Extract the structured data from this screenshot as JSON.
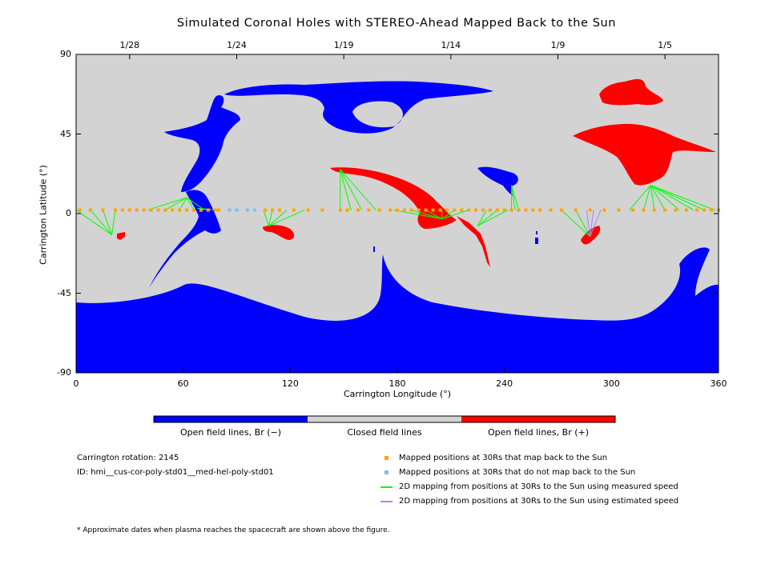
{
  "chart_data": {
    "type": "map",
    "title": "Simulated Coronal Holes with STEREO-Ahead Mapped Back to the Sun",
    "xlabel": "Carrington Longitude (°)",
    "ylabel": "Carrington Latitude (°)",
    "xlim": [
      0,
      360
    ],
    "ylim": [
      -90,
      90
    ],
    "x_ticks": [
      0,
      60,
      120,
      180,
      240,
      300,
      360
    ],
    "y_ticks": [
      90,
      45,
      0,
      -45,
      -90
    ],
    "top_axis_dates": [
      {
        "label": "1/28",
        "lon": 30
      },
      {
        "label": "1/24",
        "lon": 90
      },
      {
        "label": "1/19",
        "lon": 150
      },
      {
        "label": "1/14",
        "lon": 210
      },
      {
        "label": "1/9",
        "lon": 270
      },
      {
        "label": "1/5",
        "lon": 330
      }
    ],
    "colorbar": [
      {
        "label": "Open field lines, Br (−)",
        "color": "#0000ff"
      },
      {
        "label": "Closed field lines",
        "color": "#d3d3d3"
      },
      {
        "label": "Open field lines, Br (+)",
        "color": "#ff0000"
      }
    ],
    "footpoints": [
      {
        "lon": 20,
        "lat": -12,
        "targets": [
          0,
          8,
          15,
          22
        ]
      },
      {
        "lon": 62,
        "lat": 9,
        "targets": [
          40,
          50,
          58,
          66,
          72
        ]
      },
      {
        "lon": 68,
        "lat": 3,
        "targets": [
          75,
          80
        ]
      },
      {
        "lon": 108,
        "lat": -7,
        "targets": [
          105,
          110,
          118,
          128
        ]
      },
      {
        "lon": 148,
        "lat": 25,
        "targets": [
          148,
          154,
          160,
          168
        ]
      },
      {
        "lon": 205,
        "lat": -3,
        "targets": [
          178,
          188,
          196,
          205,
          212,
          220
        ]
      },
      {
        "lon": 225,
        "lat": -7,
        "targets": [
          230,
          236,
          242
        ]
      },
      {
        "lon": 244,
        "lat": 16,
        "targets": [
          244,
          246,
          248
        ]
      },
      {
        "lon": 288,
        "lat": -13,
        "targets": [
          272,
          280
        ]
      },
      {
        "lon": 322,
        "lat": 16,
        "targets": [
          310,
          318,
          324,
          330,
          338,
          346,
          352,
          358
        ]
      }
    ],
    "estimated_mappings": [
      {
        "lon": 288,
        "lat": -13,
        "targets": [
          286,
          290,
          294
        ]
      }
    ],
    "mapped_points_back": [
      2,
      8,
      15,
      22,
      26,
      30,
      34,
      38,
      42,
      46,
      50,
      54,
      58,
      62,
      66,
      70,
      74,
      78,
      80,
      106,
      110,
      114,
      122,
      130,
      138,
      148,
      152,
      158,
      164,
      170,
      176,
      180,
      184,
      188,
      192,
      196,
      200,
      204,
      208,
      212,
      216,
      220,
      224,
      228,
      232,
      236,
      240,
      244,
      248,
      252,
      256,
      260,
      266,
      272,
      280,
      288,
      296,
      304,
      312,
      318,
      324,
      330,
      336,
      342,
      348,
      352,
      356,
      360
    ],
    "mapped_points_no": [
      86,
      90,
      96,
      100
    ]
  },
  "info": {
    "rotation": "Carrington rotation: 2145",
    "id": "ID: hmi__cus-cor-poly-std01__med-hel-poly-std01",
    "footnote": "* Approximate dates when plasma reaches the spacecraft are shown above the figure."
  },
  "legend": [
    {
      "label": "Mapped positions at 30Rs that map back to the Sun",
      "color": "#ffa500",
      "kind": "square"
    },
    {
      "label": "Mapped positions at 30Rs that do not map back to the Sun",
      "color": "#7ec0ee",
      "kind": "square"
    },
    {
      "label": "2D mapping from positions at 30Rs to the Sun using measured speed",
      "color": "#00ff00",
      "kind": "line"
    },
    {
      "label": "2D mapping from positions at 30Rs to the Sun using estimated speed",
      "color": "#b080ff",
      "kind": "line"
    }
  ]
}
